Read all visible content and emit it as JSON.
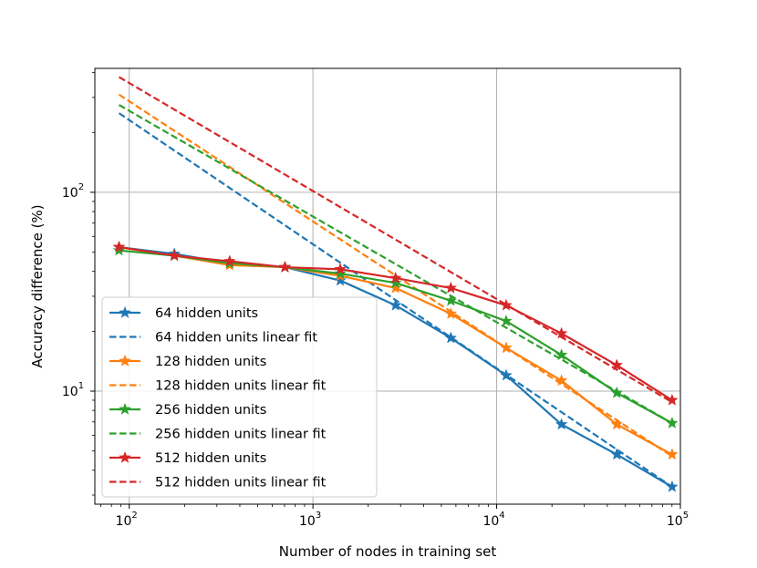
{
  "chart_data": {
    "type": "line",
    "xlabel": "Number of nodes in training set",
    "ylabel": "Accuracy difference (%)",
    "xscale": "log",
    "yscale": "log",
    "xlim": [
      65,
      100000
    ],
    "ylim": [
      2.7,
      420
    ],
    "x_ticks": [
      {
        "value": 100,
        "label": "10",
        "exp": "2"
      },
      {
        "value": 1000,
        "label": "10",
        "exp": "3"
      },
      {
        "value": 10000,
        "label": "10",
        "exp": "4"
      },
      {
        "value": 100000,
        "label": "10",
        "exp": "5"
      }
    ],
    "y_ticks": [
      {
        "value": 10,
        "label": "10",
        "exp": "1"
      },
      {
        "value": 100,
        "label": "10",
        "exp": "2"
      }
    ],
    "grid": true,
    "legend_position": "lower-left",
    "series": [
      {
        "name": "64 hidden units",
        "color": "#1f77b4",
        "style": "solid",
        "marker": "star",
        "x": [
          88,
          176,
          352,
          704,
          1408,
          2816,
          5632,
          11264,
          22528,
          45056,
          90112
        ],
        "y": [
          53,
          49,
          44,
          42,
          36,
          27,
          18.5,
          12,
          6.8,
          4.8,
          3.3
        ]
      },
      {
        "name": "64 hidden units linear fit",
        "color": "#1f77b4",
        "style": "dashed",
        "marker": "none",
        "x": [
          88,
          90112
        ],
        "y": [
          250,
          3.3
        ]
      },
      {
        "name": "128 hidden units",
        "color": "#ff7f0e",
        "style": "solid",
        "marker": "star",
        "x": [
          88,
          176,
          352,
          704,
          1408,
          2816,
          5632,
          11264,
          22528,
          45056,
          90112
        ],
        "y": [
          53,
          48,
          43,
          42,
          38,
          33,
          24.5,
          16.5,
          11.3,
          6.8,
          4.8
        ]
      },
      {
        "name": "128 hidden units linear fit",
        "color": "#ff7f0e",
        "style": "dashed",
        "marker": "none",
        "x": [
          88,
          90112
        ],
        "y": [
          310,
          4.7
        ]
      },
      {
        "name": "256 hidden units",
        "color": "#2ca02c",
        "style": "solid",
        "marker": "star",
        "x": [
          88,
          176,
          352,
          704,
          1408,
          2816,
          5632,
          11264,
          22528,
          45056,
          90112
        ],
        "y": [
          51,
          48,
          44,
          42,
          39,
          35,
          28.5,
          22.5,
          15.2,
          9.8,
          6.9
        ]
      },
      {
        "name": "256 hidden units linear fit",
        "color": "#2ca02c",
        "style": "dashed",
        "marker": "none",
        "x": [
          88,
          90112
        ],
        "y": [
          275,
          6.9
        ]
      },
      {
        "name": "512 hidden units",
        "color": "#d62728",
        "style": "solid",
        "marker": "star",
        "x": [
          88,
          176,
          352,
          704,
          1408,
          2816,
          5632,
          11264,
          22528,
          45056,
          90112
        ],
        "y": [
          53,
          48,
          45,
          42,
          41,
          37,
          33,
          27,
          19.5,
          13.5,
          9
        ]
      },
      {
        "name": "512 hidden units linear fit",
        "color": "#d62728",
        "style": "dashed",
        "marker": "none",
        "x": [
          88,
          90112
        ],
        "y": [
          380,
          8.8
        ]
      }
    ]
  }
}
